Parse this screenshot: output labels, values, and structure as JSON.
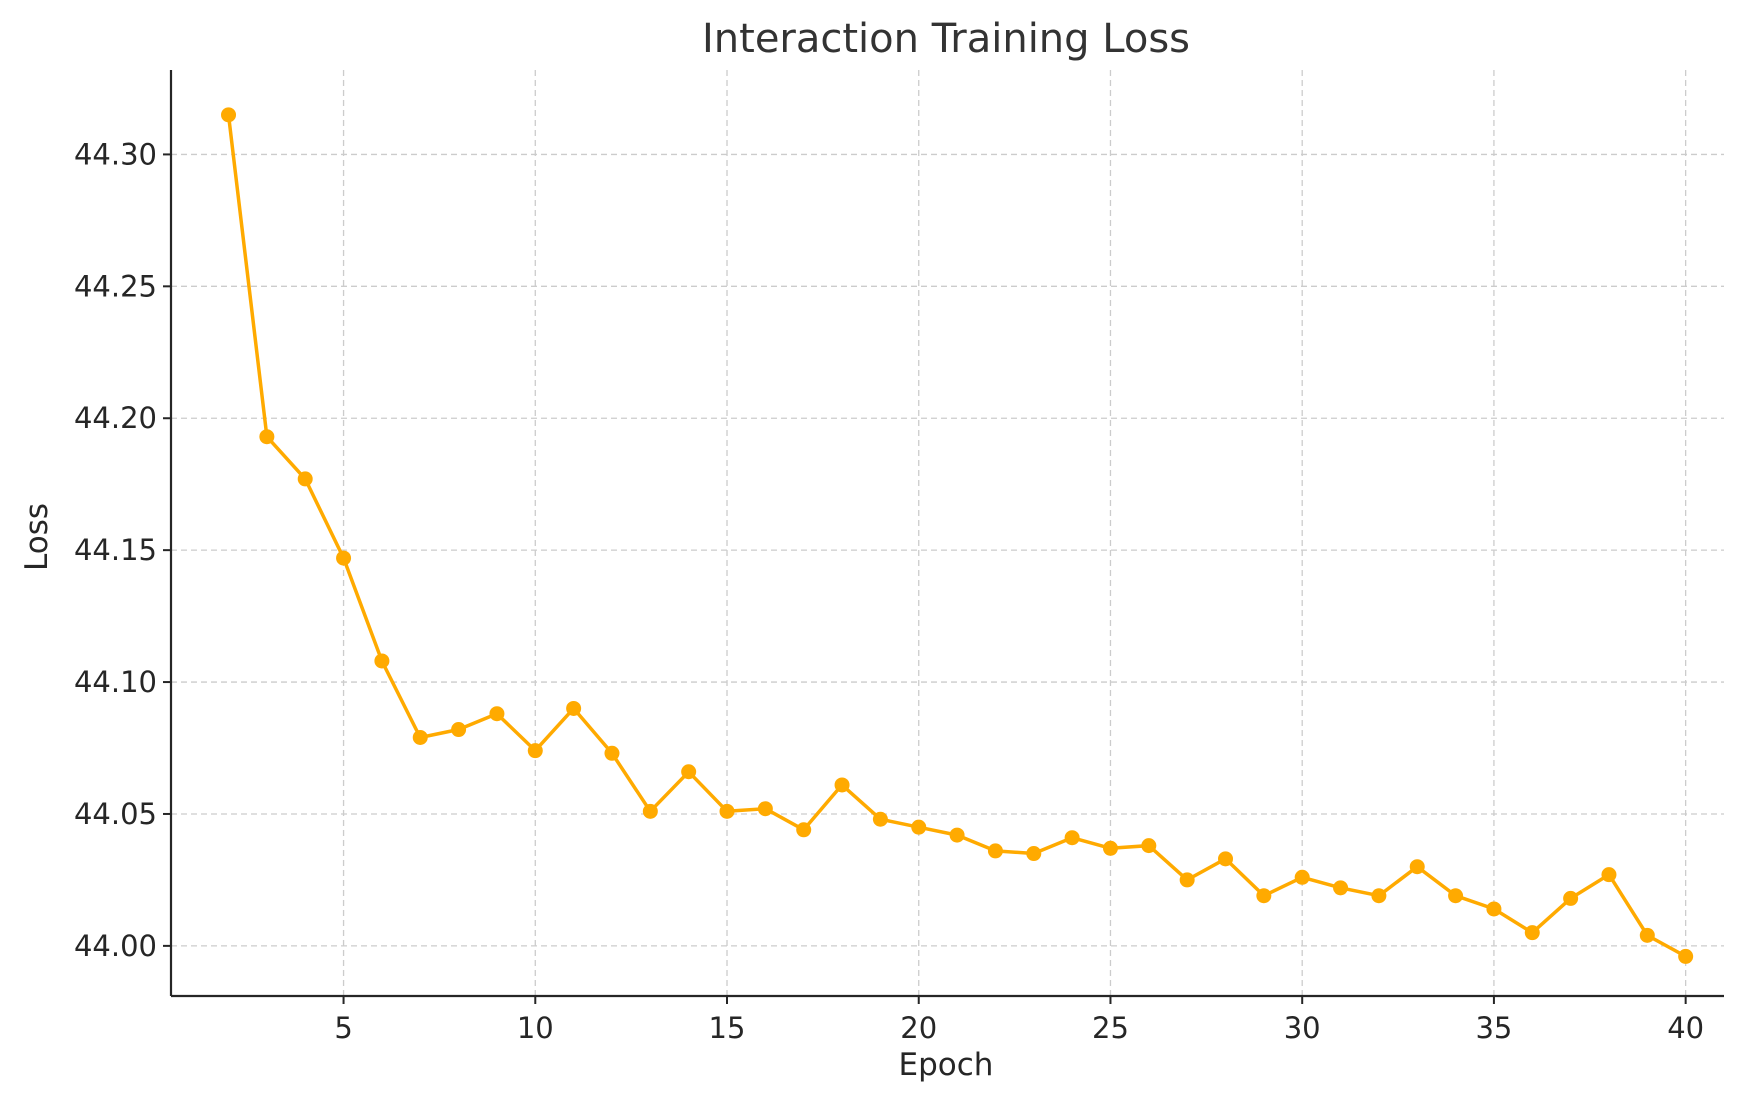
{
  "chart_data": {
    "type": "line",
    "title": "Interaction Training Loss",
    "xlabel": "Epoch",
    "ylabel": "Loss",
    "xlim": [
      0.5,
      41.0
    ],
    "ylim": [
      43.981,
      44.332
    ],
    "xticks": [
      5,
      10,
      15,
      20,
      25,
      30,
      35,
      40
    ],
    "yticks": [
      44.0,
      44.05,
      44.1,
      44.15,
      44.2,
      44.25,
      44.3
    ],
    "grid": true,
    "color": "#FFAA00",
    "series": [
      {
        "x": [
          2,
          3,
          4,
          5,
          6,
          7,
          8,
          9,
          10,
          11,
          12,
          13,
          14,
          15,
          16,
          17,
          18,
          19,
          20,
          21,
          22,
          23,
          24,
          25,
          26,
          27,
          28,
          29,
          30,
          31,
          32,
          33,
          34,
          35,
          36,
          37,
          38,
          39,
          40
        ],
        "values": [
          44.315,
          44.193,
          44.177,
          44.147,
          44.108,
          44.079,
          44.082,
          44.088,
          44.074,
          44.09,
          44.073,
          44.051,
          44.066,
          44.051,
          44.052,
          44.044,
          44.061,
          44.048,
          44.045,
          44.042,
          44.036,
          44.035,
          44.041,
          44.037,
          44.038,
          44.025,
          44.033,
          44.019,
          44.026,
          44.022,
          44.019,
          44.03,
          44.019,
          44.014,
          44.005,
          44.018,
          44.027,
          44.004,
          43.996
        ]
      }
    ]
  }
}
